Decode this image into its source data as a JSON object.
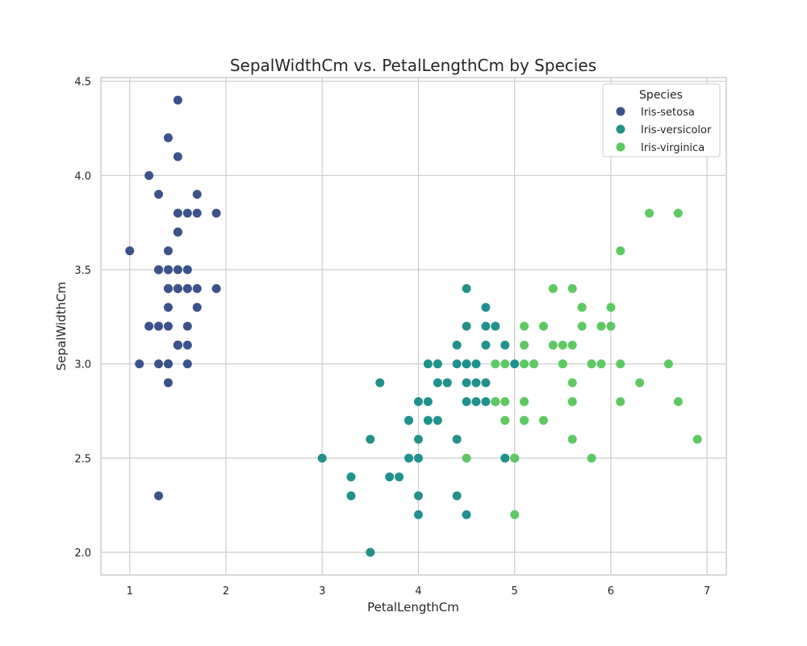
{
  "chart_data": {
    "type": "scatter",
    "title": "SepalWidthCm vs. PetalLengthCm by Species",
    "xlabel": "PetalLengthCm",
    "ylabel": "SepalWidthCm",
    "xlim": [
      0.7,
      7.2
    ],
    "ylim": [
      1.88,
      4.52
    ],
    "xticks": [
      1,
      2,
      3,
      4,
      5,
      6,
      7
    ],
    "xtick_labels": [
      "1",
      "2",
      "3",
      "4",
      "5",
      "6",
      "7"
    ],
    "yticks": [
      2.0,
      2.5,
      3.0,
      3.5,
      4.0,
      4.5
    ],
    "ytick_labels": [
      "2.0",
      "2.5",
      "3.0",
      "3.5",
      "4.0",
      "4.5"
    ],
    "grid": true,
    "legend": {
      "title": "Species",
      "placement": "top-right"
    },
    "series": [
      {
        "name": "Iris-setosa",
        "color": "#3b528b",
        "points": [
          [
            1.4,
            3.5
          ],
          [
            1.4,
            3.0
          ],
          [
            1.3,
            3.2
          ],
          [
            1.5,
            3.1
          ],
          [
            1.4,
            3.6
          ],
          [
            1.7,
            3.9
          ],
          [
            1.4,
            3.4
          ],
          [
            1.5,
            3.4
          ],
          [
            1.4,
            2.9
          ],
          [
            1.5,
            3.1
          ],
          [
            1.5,
            3.7
          ],
          [
            1.6,
            3.4
          ],
          [
            1.4,
            3.0
          ],
          [
            1.1,
            3.0
          ],
          [
            1.2,
            4.0
          ],
          [
            1.5,
            4.4
          ],
          [
            1.3,
            3.9
          ],
          [
            1.4,
            3.5
          ],
          [
            1.7,
            3.8
          ],
          [
            1.5,
            3.8
          ],
          [
            1.7,
            3.4
          ],
          [
            1.5,
            3.7
          ],
          [
            1.0,
            3.6
          ],
          [
            1.7,
            3.3
          ],
          [
            1.9,
            3.4
          ],
          [
            1.6,
            3.0
          ],
          [
            1.6,
            3.4
          ],
          [
            1.5,
            3.5
          ],
          [
            1.4,
            3.4
          ],
          [
            1.6,
            3.2
          ],
          [
            1.6,
            3.1
          ],
          [
            1.5,
            3.4
          ],
          [
            1.5,
            4.1
          ],
          [
            1.4,
            4.2
          ],
          [
            1.5,
            3.1
          ],
          [
            1.2,
            3.2
          ],
          [
            1.3,
            3.5
          ],
          [
            1.5,
            3.1
          ],
          [
            1.3,
            3.0
          ],
          [
            1.5,
            3.4
          ],
          [
            1.3,
            3.5
          ],
          [
            1.3,
            2.3
          ],
          [
            1.3,
            3.2
          ],
          [
            1.6,
            3.5
          ],
          [
            1.9,
            3.8
          ],
          [
            1.4,
            3.0
          ],
          [
            1.6,
            3.8
          ],
          [
            1.4,
            3.2
          ],
          [
            1.5,
            3.7
          ],
          [
            1.4,
            3.3
          ]
        ]
      },
      {
        "name": "Iris-versicolor",
        "color": "#21918c",
        "points": [
          [
            4.7,
            3.2
          ],
          [
            4.5,
            3.2
          ],
          [
            4.9,
            3.1
          ],
          [
            4.0,
            2.3
          ],
          [
            4.6,
            2.8
          ],
          [
            4.5,
            2.8
          ],
          [
            4.7,
            3.3
          ],
          [
            3.3,
            2.4
          ],
          [
            4.6,
            2.9
          ],
          [
            3.9,
            2.7
          ],
          [
            3.5,
            2.0
          ],
          [
            4.2,
            3.0
          ],
          [
            4.0,
            2.2
          ],
          [
            4.7,
            2.9
          ],
          [
            3.6,
            2.9
          ],
          [
            4.4,
            3.1
          ],
          [
            4.5,
            3.0
          ],
          [
            4.1,
            2.7
          ],
          [
            4.5,
            2.2
          ],
          [
            3.9,
            2.5
          ],
          [
            4.8,
            3.2
          ],
          [
            4.0,
            2.8
          ],
          [
            4.9,
            2.5
          ],
          [
            4.7,
            2.8
          ],
          [
            4.3,
            2.9
          ],
          [
            4.4,
            3.0
          ],
          [
            4.8,
            2.8
          ],
          [
            5.0,
            3.0
          ],
          [
            4.5,
            2.9
          ],
          [
            3.5,
            2.6
          ],
          [
            3.8,
            2.4
          ],
          [
            3.7,
            2.4
          ],
          [
            3.9,
            2.7
          ],
          [
            5.1,
            2.7
          ],
          [
            4.5,
            3.0
          ],
          [
            4.5,
            3.4
          ],
          [
            4.7,
            3.1
          ],
          [
            4.4,
            2.3
          ],
          [
            4.1,
            3.0
          ],
          [
            4.0,
            2.5
          ],
          [
            4.4,
            2.6
          ],
          [
            4.6,
            3.0
          ],
          [
            4.0,
            2.6
          ],
          [
            3.3,
            2.3
          ],
          [
            4.2,
            2.7
          ],
          [
            4.2,
            3.0
          ],
          [
            4.2,
            2.9
          ],
          [
            4.3,
            2.9
          ],
          [
            3.0,
            2.5
          ],
          [
            4.1,
            2.8
          ]
        ]
      },
      {
        "name": "Iris-virginica",
        "color": "#5ec962",
        "points": [
          [
            6.0,
            3.3
          ],
          [
            5.1,
            2.7
          ],
          [
            5.9,
            3.0
          ],
          [
            5.6,
            2.9
          ],
          [
            5.8,
            3.0
          ],
          [
            6.6,
            3.0
          ],
          [
            4.5,
            2.5
          ],
          [
            6.3,
            2.9
          ],
          [
            5.8,
            2.5
          ],
          [
            6.1,
            3.6
          ],
          [
            5.1,
            3.2
          ],
          [
            5.3,
            2.7
          ],
          [
            5.5,
            3.0
          ],
          [
            5.0,
            2.5
          ],
          [
            5.1,
            2.8
          ],
          [
            5.3,
            3.2
          ],
          [
            5.5,
            3.0
          ],
          [
            6.7,
            3.8
          ],
          [
            6.9,
            2.6
          ],
          [
            5.0,
            2.2
          ],
          [
            5.7,
            3.2
          ],
          [
            4.9,
            2.8
          ],
          [
            6.7,
            2.8
          ],
          [
            4.9,
            2.7
          ],
          [
            5.7,
            3.3
          ],
          [
            6.0,
            3.2
          ],
          [
            4.8,
            2.8
          ],
          [
            4.9,
            3.0
          ],
          [
            5.6,
            2.8
          ],
          [
            5.8,
            3.0
          ],
          [
            6.1,
            2.8
          ],
          [
            6.4,
            3.8
          ],
          [
            5.6,
            2.8
          ],
          [
            5.1,
            2.8
          ],
          [
            5.6,
            2.6
          ],
          [
            6.1,
            3.0
          ],
          [
            5.6,
            3.4
          ],
          [
            5.5,
            3.1
          ],
          [
            4.8,
            3.0
          ],
          [
            5.4,
            3.1
          ],
          [
            5.6,
            3.1
          ],
          [
            5.1,
            3.1
          ],
          [
            5.9,
            3.2
          ],
          [
            5.7,
            3.3
          ],
          [
            5.2,
            3.0
          ],
          [
            5.0,
            2.5
          ],
          [
            5.2,
            3.0
          ],
          [
            5.4,
            3.4
          ],
          [
            5.1,
            3.0
          ]
        ]
      }
    ]
  }
}
